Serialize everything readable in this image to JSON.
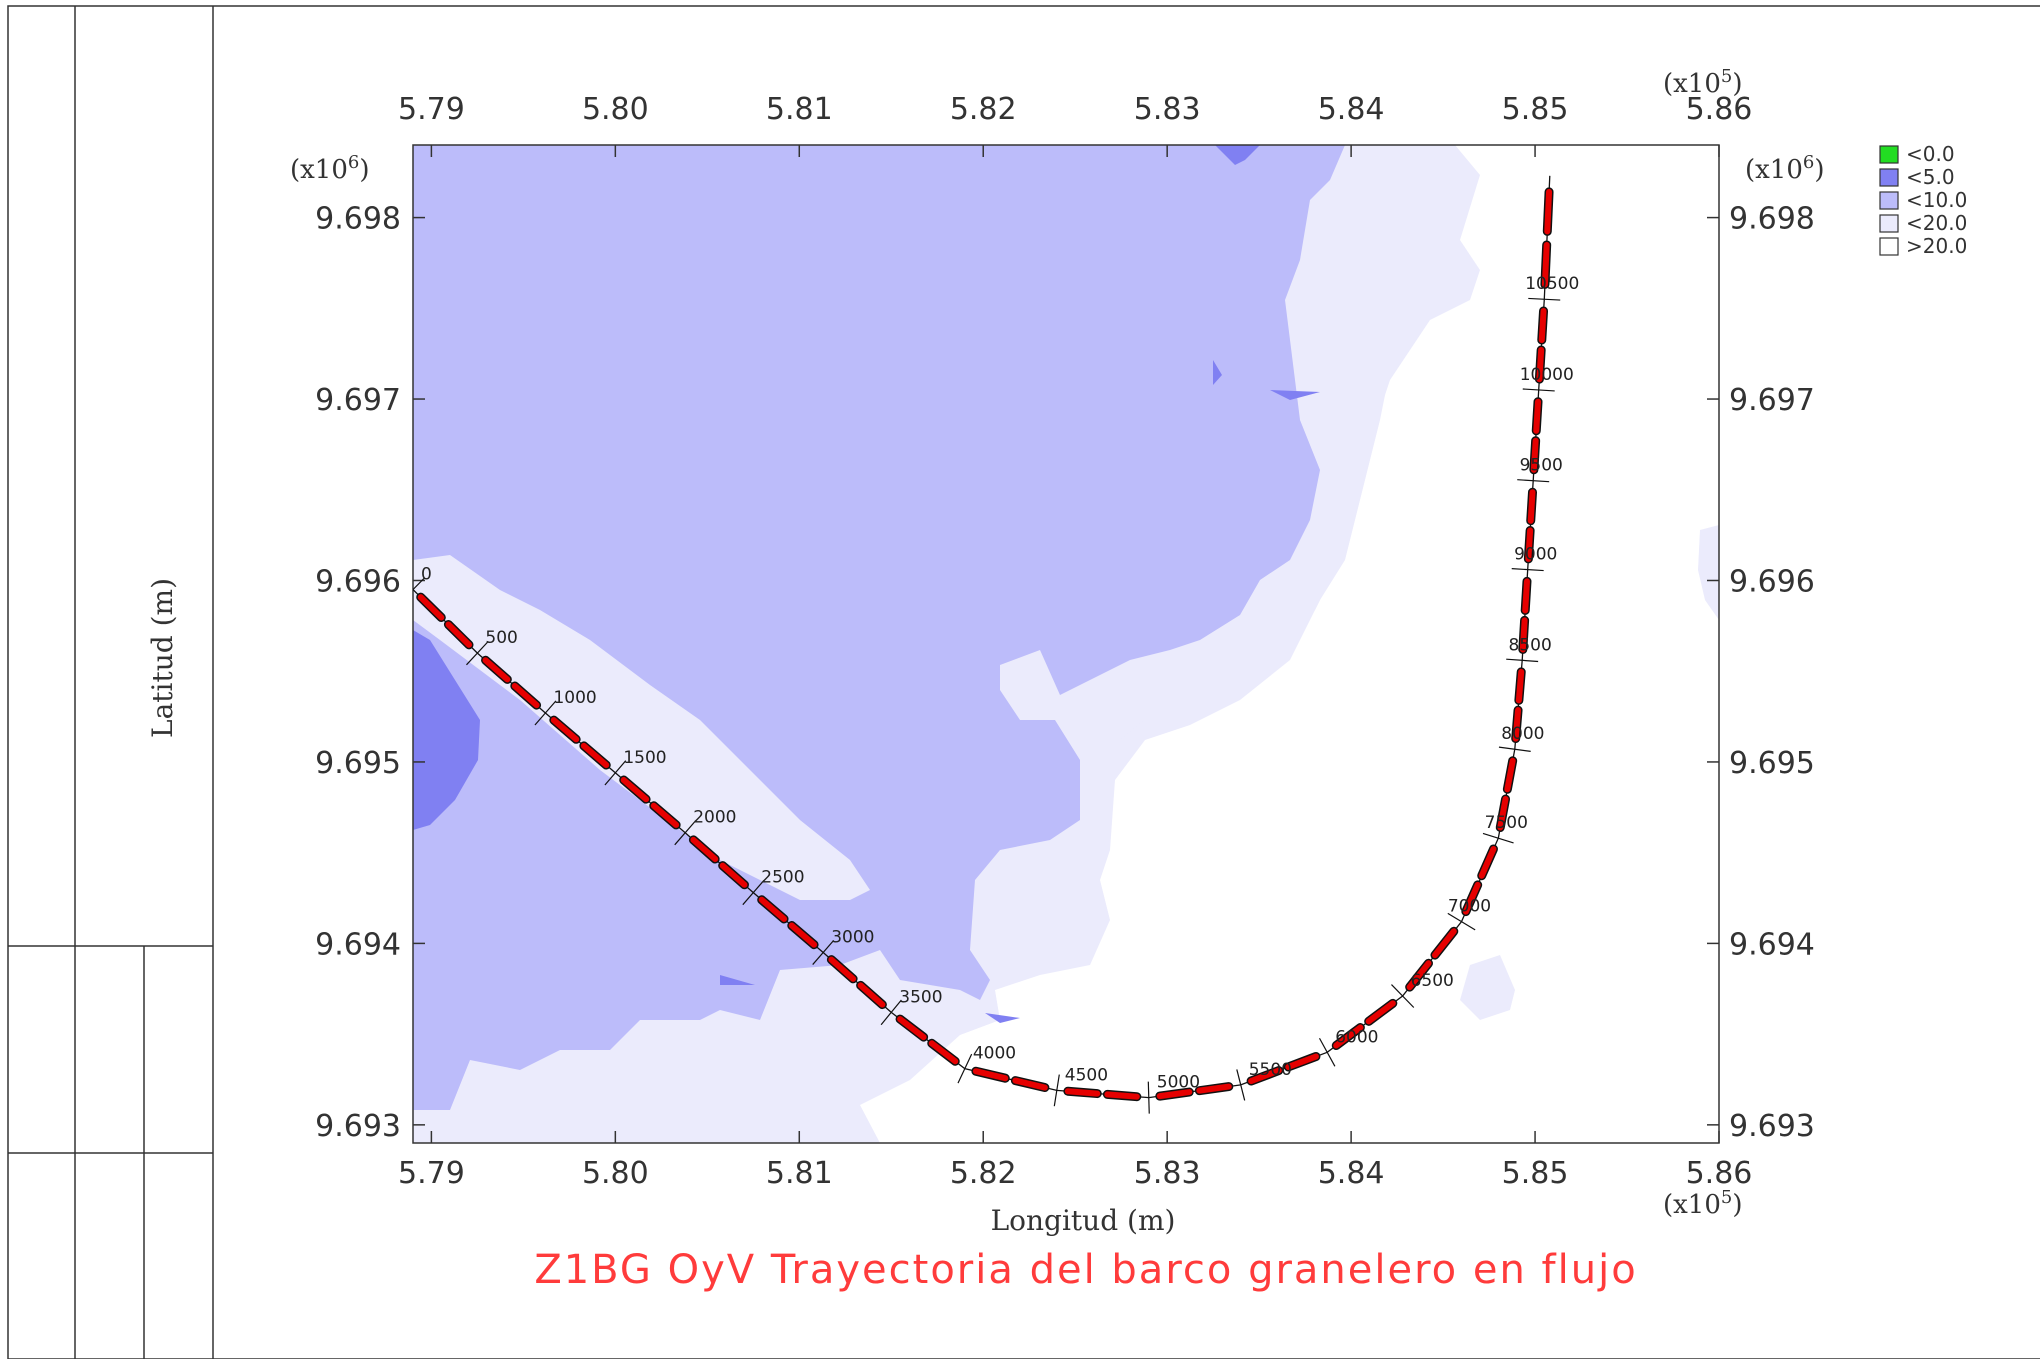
{
  "chart_data": {
    "type": "contour-map",
    "title": "Z1BG OyV Trayectoria del barco granelero en flujo",
    "xlabel": "Longitud (m)",
    "ylabel": "Latitud (m)",
    "x_multiplier": "(x10",
    "x_multiplier_exp": "5",
    "y_multiplier": "(x10",
    "y_multiplier_exp": "6",
    "multiplier_close": ")",
    "xlim": [
      5.789,
      5.86
    ],
    "ylim": [
      9.6929,
      9.6984
    ],
    "x_ticks": [
      "5.79",
      "5.80",
      "5.81",
      "5.82",
      "5.83",
      "5.84",
      "5.85",
      "5.86"
    ],
    "x_tick_values": [
      5.79,
      5.8,
      5.81,
      5.82,
      5.83,
      5.84,
      5.85,
      5.86
    ],
    "y_ticks": [
      "9.693",
      "9.694",
      "9.695",
      "9.696",
      "9.697",
      "9.698"
    ],
    "y_tick_values": [
      9.693,
      9.694,
      9.695,
      9.696,
      9.697,
      9.698
    ],
    "legend": [
      {
        "label": "<0.0",
        "color": "#22dd22"
      },
      {
        "label": "<5.0",
        "color": "#8080f2"
      },
      {
        "label": "<10.0",
        "color": "#bcbcfa"
      },
      {
        "label": "<20.0",
        "color": "#ebebfc"
      },
      {
        "label": ">20.0",
        "color": "#ffffff"
      }
    ],
    "legend_position": "top-right, outside plot",
    "trajectory_color": "#e60000",
    "trajectory_markers": [
      {
        "label": "0",
        "x": 5.789,
        "y": 9.69595
      },
      {
        "label": "500",
        "x": 5.7925,
        "y": 9.6956
      },
      {
        "label": "1000",
        "x": 5.7962,
        "y": 9.69527
      },
      {
        "label": "1500",
        "x": 5.8,
        "y": 9.69494
      },
      {
        "label": "2000",
        "x": 5.8038,
        "y": 9.69461
      },
      {
        "label": "2500",
        "x": 5.8075,
        "y": 9.69428
      },
      {
        "label": "3000",
        "x": 5.8113,
        "y": 9.69395
      },
      {
        "label": "3500",
        "x": 5.815,
        "y": 9.69362
      },
      {
        "label": "4000",
        "x": 5.819,
        "y": 9.69331
      },
      {
        "label": "4500",
        "x": 5.824,
        "y": 9.69319
      },
      {
        "label": "5000",
        "x": 5.829,
        "y": 9.69315
      },
      {
        "label": "5500",
        "x": 5.834,
        "y": 9.69322
      },
      {
        "label": "6000",
        "x": 5.8387,
        "y": 9.6934
      },
      {
        "label": "6500",
        "x": 5.8428,
        "y": 9.69371
      },
      {
        "label": "7000",
        "x": 5.846,
        "y": 9.69412
      },
      {
        "label": "7500",
        "x": 5.848,
        "y": 9.69458
      },
      {
        "label": "8000",
        "x": 5.8489,
        "y": 9.69507
      },
      {
        "label": "8500",
        "x": 5.8493,
        "y": 9.69556
      },
      {
        "label": "9000",
        "x": 5.8496,
        "y": 9.69606
      },
      {
        "label": "9500",
        "x": 5.8499,
        "y": 9.69655
      },
      {
        "label": "10000",
        "x": 5.8502,
        "y": 9.69705
      },
      {
        "label": "10500",
        "x": 5.8505,
        "y": 9.69755
      }
    ],
    "trajectory_end": {
      "x": 5.8508,
      "y": 9.69823
    }
  }
}
